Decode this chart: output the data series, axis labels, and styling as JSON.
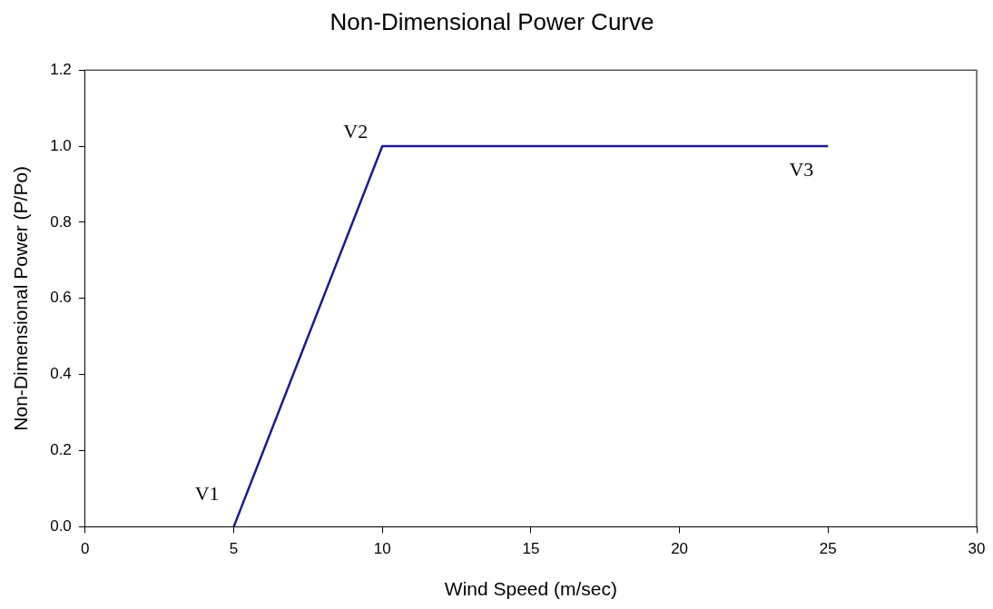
{
  "chart_data": {
    "type": "line",
    "title": "Non-Dimensional Power Curve",
    "xlabel": "Wind Speed (m/sec)",
    "ylabel": "Non-Dimensional Power (P/Po)",
    "x": [
      5,
      10,
      25
    ],
    "series": [
      {
        "color": "#1c1c8c",
        "values": [
          0,
          1,
          1
        ]
      }
    ],
    "xlim": [
      0,
      30
    ],
    "xticks": [
      0,
      5,
      10,
      15,
      20,
      25,
      30
    ],
    "ylim": [
      0,
      1.2
    ],
    "yticks": [
      {
        "value": 0,
        "label": "0.0"
      },
      {
        "value": 0.2,
        "label": "0.2"
      },
      {
        "value": 0.4,
        "label": "0.4"
      },
      {
        "value": 0.6,
        "label": "0.6"
      },
      {
        "value": 0.8,
        "label": "0.8"
      },
      {
        "value": 1,
        "label": "1.0"
      },
      {
        "value": 1.2,
        "label": "1.2"
      }
    ],
    "grid": false,
    "legend": false,
    "marker": "none",
    "line_style": "solid",
    "annotations": [
      {
        "text": "V1",
        "x": 5,
        "y": 0
      },
      {
        "text": "V2",
        "x": 10,
        "y": 1
      },
      {
        "text": "V3",
        "x": 25,
        "y": 1
      }
    ]
  }
}
